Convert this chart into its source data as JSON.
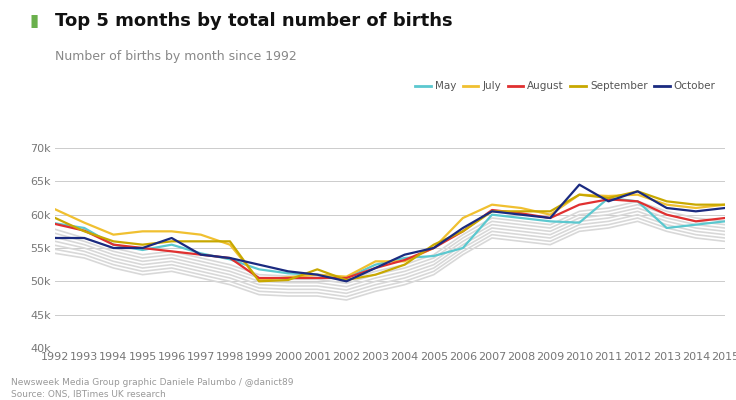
{
  "title": "Top 5 months by total number of births",
  "subtitle": "Number of births by month since 1992",
  "footnote1": "Newsweek Media Group graphic Daniele Palumbo / @danict89",
  "footnote2": "Source: ONS, IBTimes UK research",
  "title_square_color": "#6ab04c",
  "years": [
    1992,
    1993,
    1994,
    1995,
    1996,
    1997,
    1998,
    1999,
    2000,
    2001,
    2002,
    2003,
    2004,
    2005,
    2006,
    2007,
    2008,
    2009,
    2010,
    2011,
    2012,
    2013,
    2014,
    2015
  ],
  "may": [
    58700,
    58000,
    55500,
    54700,
    55500,
    54200,
    53300,
    51800,
    51200,
    51000,
    50500,
    52500,
    53500,
    53800,
    55000,
    60000,
    59500,
    59000,
    58800,
    62500,
    62000,
    58000,
    58500,
    59000
  ],
  "july": [
    60800,
    58800,
    57000,
    57500,
    57500,
    57000,
    55500,
    50200,
    50600,
    51000,
    50700,
    53000,
    53000,
    55000,
    59500,
    61500,
    61000,
    60000,
    63000,
    62800,
    63000,
    61500,
    61000,
    61500
  ],
  "august": [
    58600,
    57600,
    55500,
    55000,
    54500,
    54000,
    53500,
    50500,
    50500,
    50500,
    50500,
    52000,
    53200,
    55000,
    57500,
    60700,
    60200,
    59500,
    61500,
    62300,
    62000,
    60000,
    59000,
    59500
  ],
  "september": [
    59500,
    57500,
    56000,
    55500,
    56000,
    56000,
    56000,
    50000,
    50200,
    51800,
    50200,
    51000,
    52500,
    55500,
    57500,
    60500,
    60500,
    60500,
    63000,
    62500,
    63500,
    62000,
    61500,
    61500
  ],
  "october": [
    56500,
    56500,
    55000,
    55000,
    56500,
    54000,
    53500,
    52500,
    51500,
    51000,
    50000,
    52000,
    54000,
    55000,
    58000,
    60500,
    60000,
    59500,
    64500,
    62000,
    63500,
    61000,
    60500,
    61000
  ],
  "background_lines": [
    [
      57800,
      56500,
      55000,
      54000,
      54500,
      53500,
      52500,
      51000,
      50800,
      50800,
      50200,
      51500,
      52500,
      54000,
      57000,
      59500,
      59000,
      58500,
      60500,
      61000,
      62000,
      60500,
      59500,
      59000
    ],
    [
      57200,
      56000,
      54500,
      53500,
      54000,
      53000,
      52000,
      50500,
      50300,
      50300,
      49700,
      51000,
      52000,
      53500,
      56500,
      59000,
      58500,
      58000,
      60000,
      60500,
      61500,
      60000,
      59000,
      58500
    ],
    [
      56600,
      55500,
      54000,
      53000,
      53500,
      52500,
      51500,
      50000,
      49800,
      49800,
      49200,
      50500,
      51500,
      53000,
      56000,
      58500,
      58000,
      57500,
      59500,
      60000,
      61000,
      59500,
      58500,
      58000
    ],
    [
      56000,
      55000,
      53500,
      52500,
      53000,
      52000,
      51000,
      49500,
      49300,
      49300,
      48700,
      50000,
      51000,
      52500,
      55500,
      58000,
      57500,
      57000,
      59000,
      59500,
      60500,
      59000,
      58000,
      57500
    ],
    [
      55400,
      54500,
      53000,
      52000,
      52500,
      51500,
      50500,
      49000,
      48800,
      48800,
      48200,
      49500,
      50500,
      52000,
      55000,
      57500,
      57000,
      56500,
      58500,
      59000,
      60000,
      58500,
      57500,
      57000
    ],
    [
      54800,
      54000,
      52500,
      51500,
      52000,
      51000,
      50000,
      48500,
      48300,
      48300,
      47700,
      49000,
      50000,
      51500,
      54500,
      57000,
      56500,
      56000,
      58000,
      58500,
      59500,
      58000,
      57000,
      56500
    ],
    [
      54200,
      53500,
      52000,
      51000,
      51500,
      50500,
      49500,
      48000,
      47800,
      47800,
      47200,
      48500,
      49500,
      51000,
      54000,
      56500,
      56000,
      55500,
      57500,
      58000,
      59000,
      57500,
      56500,
      56000
    ]
  ],
  "may_color": "#5bc8cf",
  "july_color": "#f0c030",
  "august_color": "#e03030",
  "september_color": "#c8a800",
  "october_color": "#1a2a80",
  "bg_line_color": "#d8d8d8",
  "ylim": [
    40000,
    70000
  ],
  "yticks": [
    40000,
    45000,
    50000,
    55000,
    60000,
    65000,
    70000
  ],
  "ytick_labels": [
    "40k",
    "45k",
    "50k",
    "55k",
    "60k",
    "65k",
    "70k"
  ],
  "background_color": "#ffffff",
  "grid_color": "#cccccc"
}
